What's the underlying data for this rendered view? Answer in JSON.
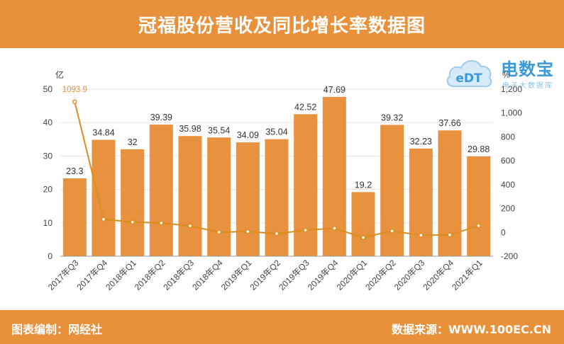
{
  "header": {
    "title": "冠福股份营收及同比增长率数据图"
  },
  "footer": {
    "left": "图表编制：网经社",
    "right": "数据来源：WWW.100EC.CN"
  },
  "logo": {
    "icon_text": "eDT",
    "brand": "电数宝",
    "sub": "电子大数据库"
  },
  "colors": {
    "accent": "#E8903A",
    "bar": "#E8913E",
    "line": "#D98E20",
    "logo_blue": "#3A9AD9"
  },
  "chart_data": {
    "type": "bar",
    "y_unit": "亿",
    "y2_unit": "%",
    "ylim": [
      0,
      50
    ],
    "y_ticks": [
      "0",
      "10",
      "20",
      "30",
      "40",
      "50"
    ],
    "y2lim": [
      -200,
      1200
    ],
    "y2_ticks": [
      "-200",
      "0",
      "200",
      "400",
      "600",
      "800",
      "1,000",
      "1,200"
    ],
    "categories": [
      "2017年Q3",
      "2017年Q4",
      "2018年Q1",
      "2018年Q2",
      "2018年Q3",
      "2018年Q4",
      "2019年Q1",
      "2019年Q2",
      "2019年Q3",
      "2019年Q4",
      "2020年Q1",
      "2020年Q2",
      "2020年Q3",
      "2020年Q4",
      "2021年Q1"
    ],
    "series": [
      {
        "type": "bar",
        "axis": "left",
        "values": [
          23.3,
          34.84,
          32,
          39.39,
          35.98,
          35.54,
          34.09,
          35.04,
          42.52,
          47.69,
          19.2,
          39.32,
          32.23,
          37.66,
          29.88
        ],
        "labels": [
          "23.3",
          "34.84",
          "32",
          "39.39",
          "35.98",
          "35.54",
          "34.09",
          "35.04",
          "42.52",
          "47.69",
          "19.2",
          "39.32",
          "32.23",
          "37.66",
          "29.88"
        ]
      },
      {
        "type": "line",
        "axis": "right",
        "values": [
          1093.9,
          109.8,
          85.96,
          79.1,
          54.4,
          2,
          6.53,
          -11,
          18.37,
          34.19,
          -43.68,
          12.21,
          -24.13,
          -21.03,
          55.63
        ],
        "labels": [
          "1093.9",
          "109.8",
          "85.96",
          "79.1",
          "54.4",
          "2",
          "6.53",
          "-11",
          "18.37",
          "34.19",
          "-43.68",
          "12.21",
          "-24.13",
          "-21.03",
          "55.63"
        ]
      }
    ]
  }
}
